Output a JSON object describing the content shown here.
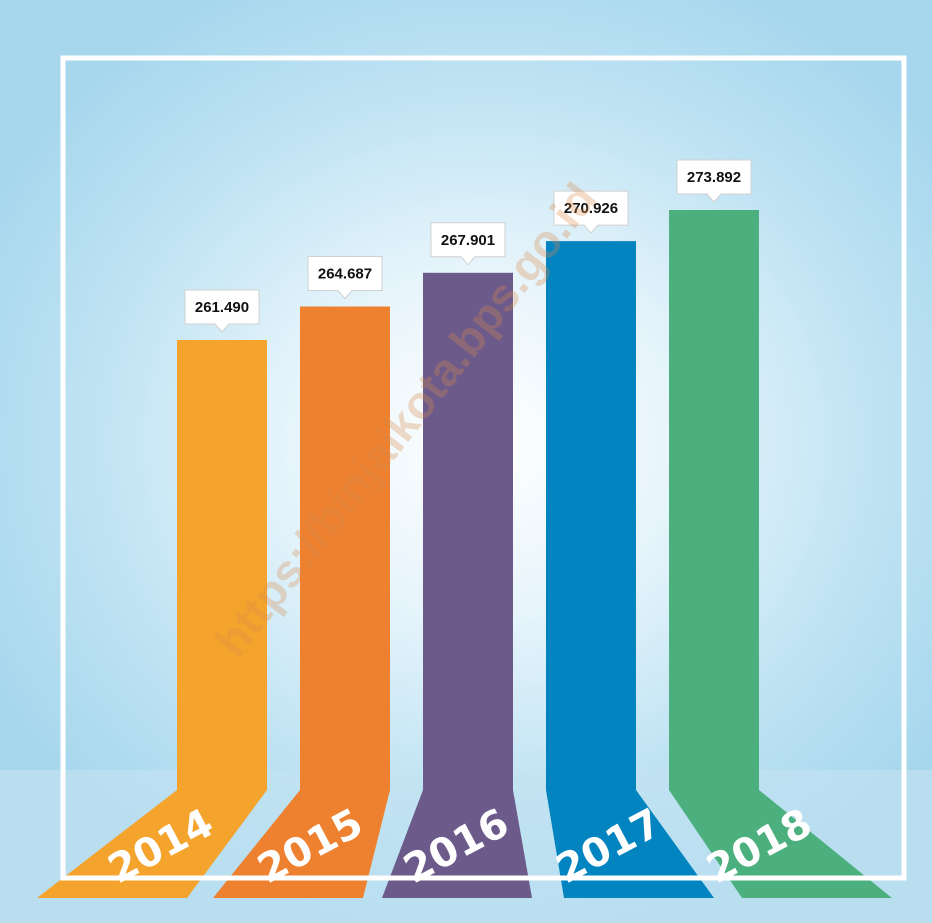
{
  "watermark": "https://binjaikota.bps.go.id",
  "colors": {
    "frame": "#ffffff",
    "floor": "#c8e3f0"
  },
  "chart_data": {
    "type": "bar",
    "categories": [
      "2014",
      "2015",
      "2016",
      "2017",
      "2018"
    ],
    "values": [
      261490,
      264687,
      267901,
      270926,
      273892
    ],
    "value_labels": [
      "261.490",
      "264.687",
      "267.901",
      "270.926",
      "273.892"
    ],
    "bar_colors": [
      "#f4a42c",
      "#ee8130",
      "#6c5a8b",
      "#0284c0",
      "#4bb07e"
    ],
    "title": "",
    "xlabel": "",
    "ylabel": "",
    "ylim": [
      230000,
      280000
    ],
    "grid": false,
    "legend": "none"
  }
}
